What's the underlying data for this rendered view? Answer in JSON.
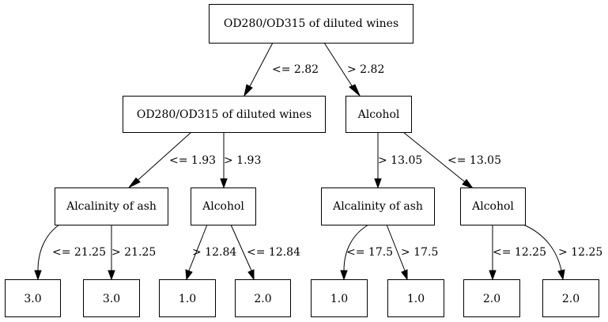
{
  "nodes": {
    "root": "OD280/OD315 of diluted wines",
    "left": "OD280/OD315 of diluted wines",
    "right": "Alcohol",
    "ll": "Alcalinity of ash",
    "lr": "Alcohol",
    "rl": "Alcalinity of ash",
    "rr": "Alcohol",
    "leaf1": "3.0",
    "leaf2": "3.0",
    "leaf3": "1.0",
    "leaf4": "2.0",
    "leaf5": "1.0",
    "leaf6": "1.0",
    "leaf7": "2.0",
    "leaf8": "2.0"
  },
  "edges": {
    "root_left": "<= 2.82",
    "root_right": "> 2.82",
    "left_ll": "<= 1.93",
    "left_lr": "> 1.93",
    "right_rl": "> 13.05",
    "right_rr": "<= 13.05",
    "ll_leaf1": "<= 21.25",
    "ll_leaf2": "> 21.25",
    "lr_leaf3": "> 12.84",
    "lr_leaf4": "<= 12.84",
    "rl_leaf5": "<= 17.5",
    "rl_leaf6": "> 17.5",
    "rr_leaf7": "<= 12.25",
    "rr_leaf8": "> 12.25"
  }
}
